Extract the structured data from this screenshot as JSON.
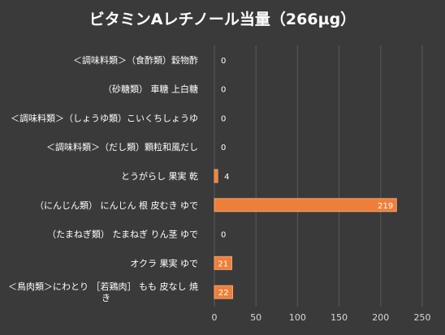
{
  "chart_data": {
    "type": "bar",
    "orientation": "horizontal",
    "title": "ビタミンAレチノール当量（266µg）",
    "categories": [
      "＜調味料類＞（食酢類）穀物酢",
      "（砂糖類） 車糖 上白糖",
      "＜調味料類＞（しょうゆ類）こいくちしょうゆ",
      "＜調味料類＞（だし類）顆粒和風だし",
      "とうがらし 果実 乾",
      "（にんじん類） にんじん 根 皮むき ゆで",
      "（たまねぎ類） たまねぎ りん茎 ゆで",
      "オクラ 果実 ゆで",
      [
        "＜鳥肉類＞にわとり ［若鶏肉］ もも 皮なし 焼",
        "き"
      ]
    ],
    "values": [
      0,
      0,
      0,
      0,
      4,
      219,
      0,
      21,
      22
    ],
    "data_labels": [
      "0",
      "0",
      "0",
      "0",
      "4",
      "219",
      "0",
      "21",
      "22"
    ],
    "xlim": [
      0,
      250
    ],
    "xticks": [
      0,
      50,
      100,
      150,
      200,
      250
    ],
    "grid": true,
    "legend": "none",
    "colors": {
      "background": "#3a3a3a",
      "bar": "#ee7f3a",
      "bar_border": "#f3a46f",
      "text": "#ffffff",
      "axis_text": "#d9d9d9",
      "grid": "#5a5a5a"
    }
  }
}
